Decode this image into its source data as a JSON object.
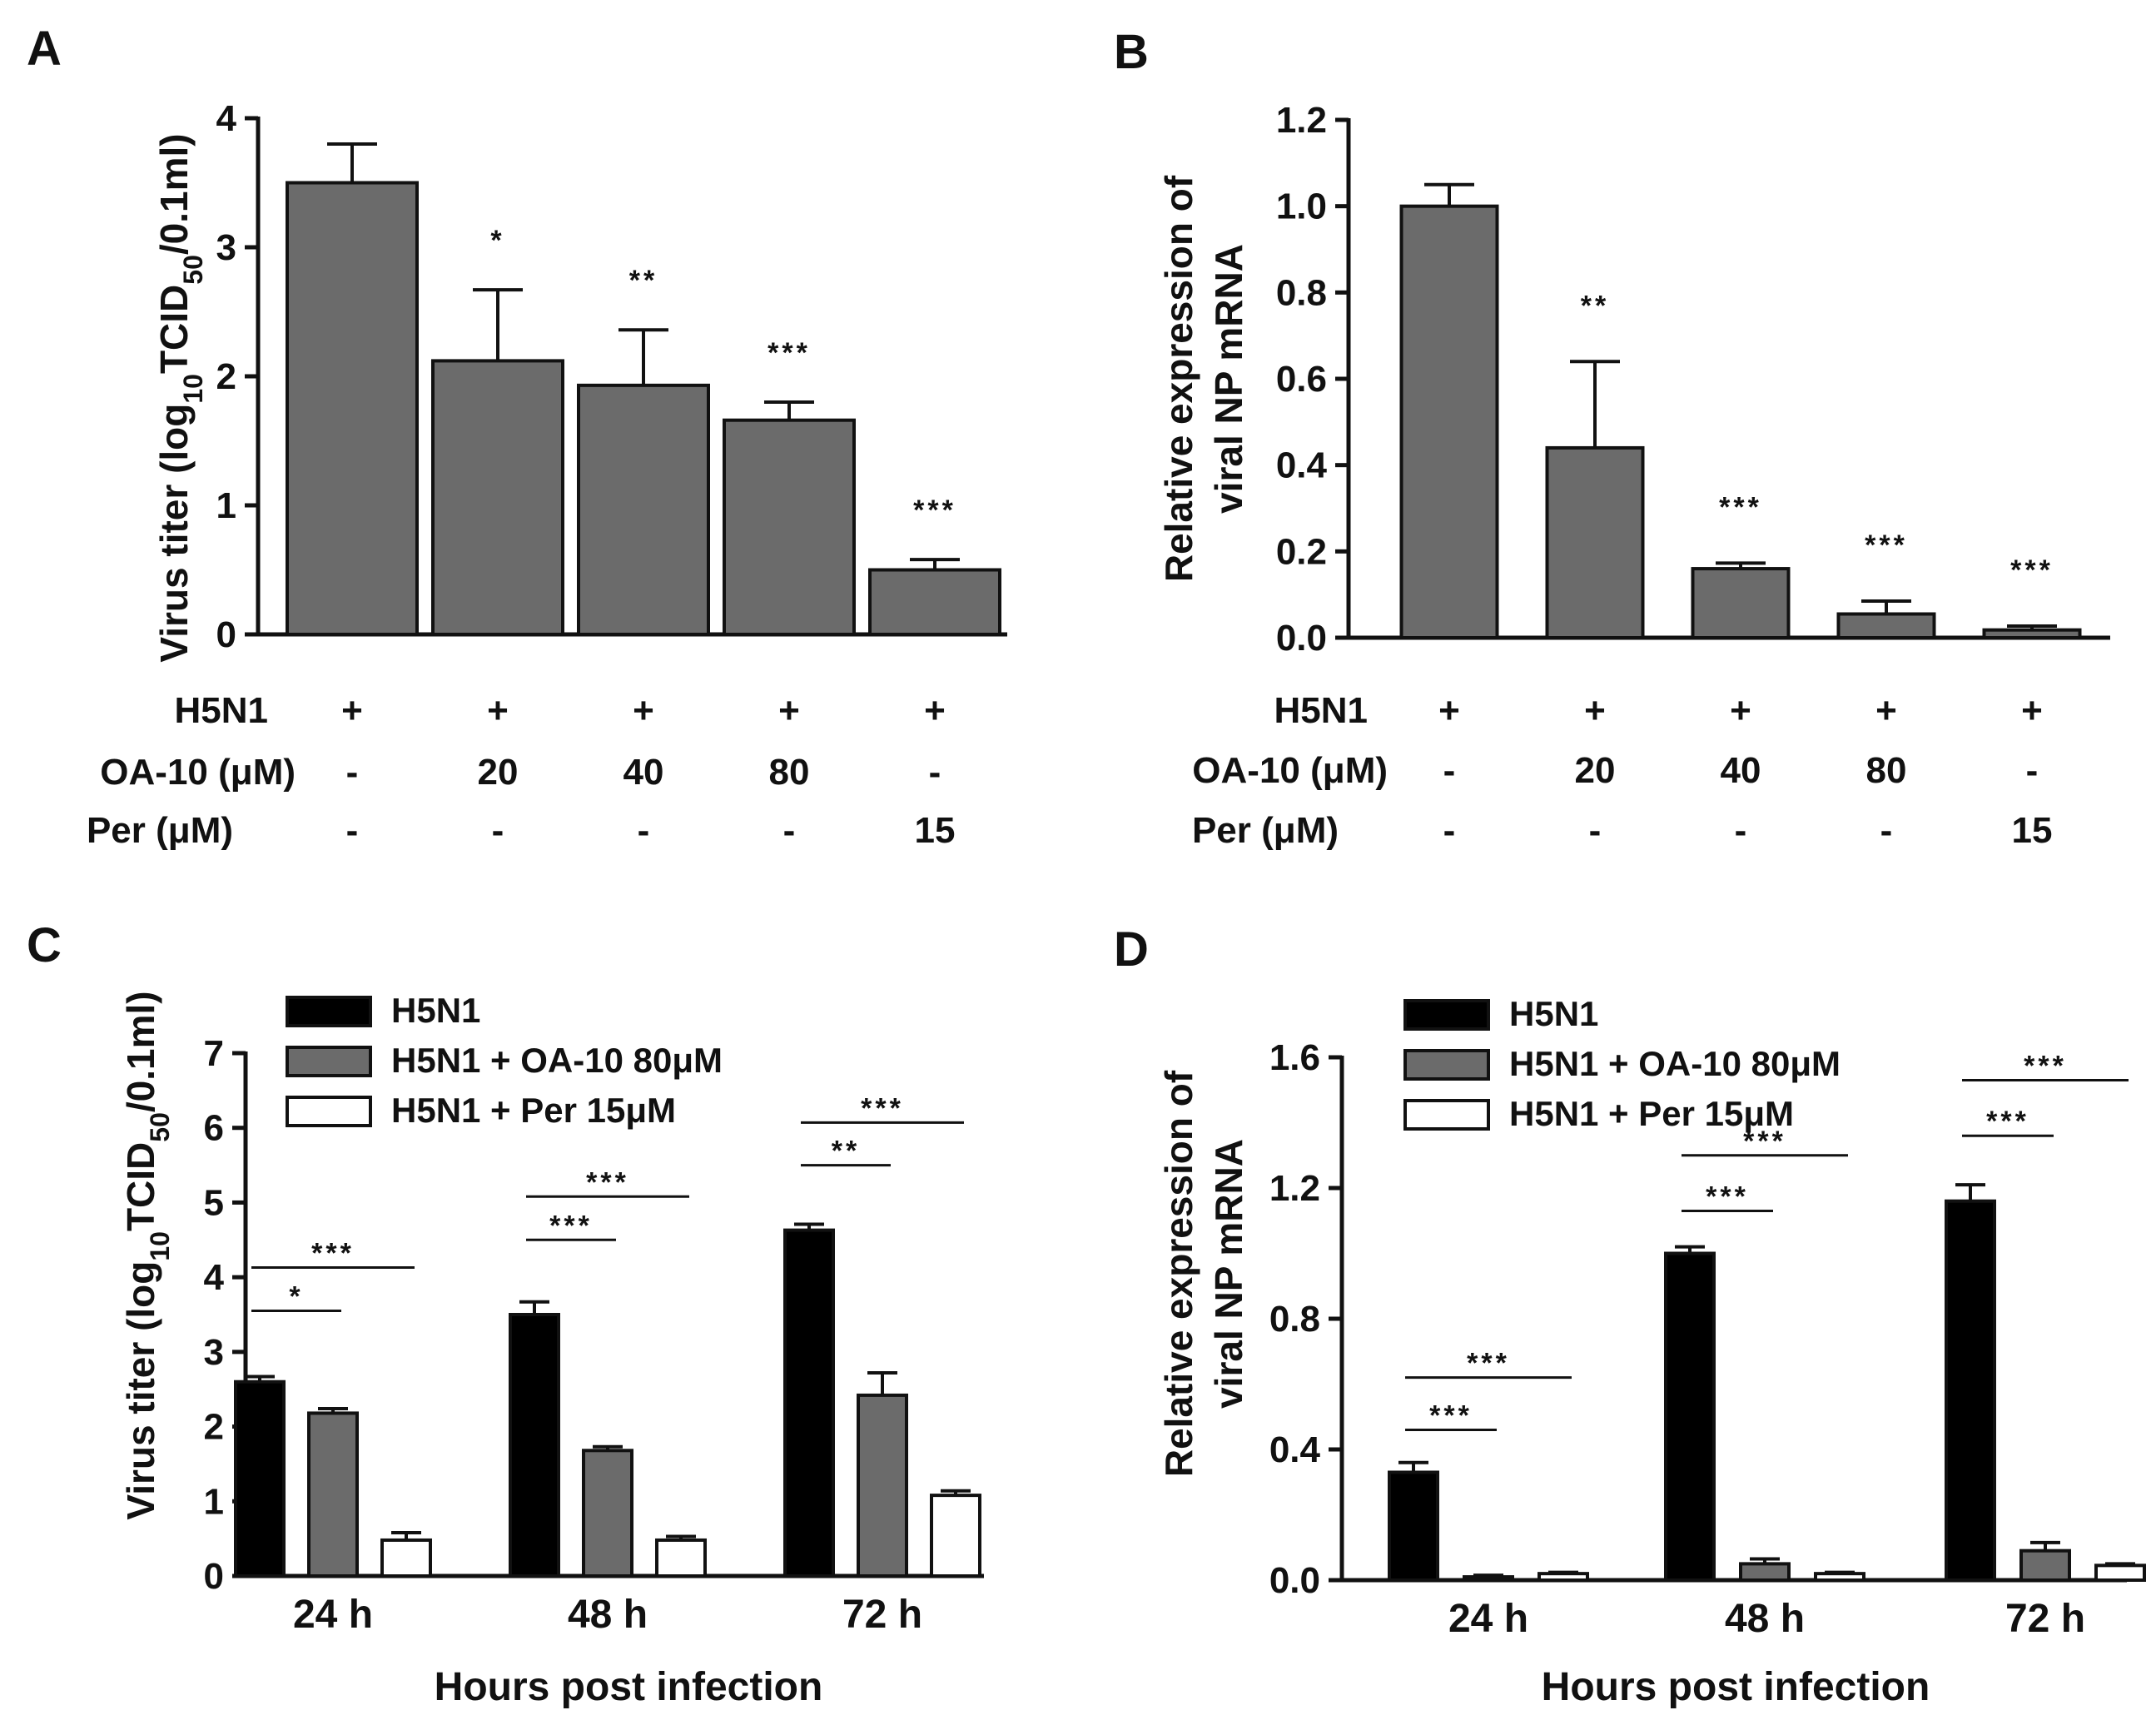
{
  "colors": {
    "black": "#000000",
    "gray": "#6b6b6b",
    "white": "#ffffff"
  },
  "chart_data": [
    {
      "panel": "A",
      "type": "bar",
      "ylabel": "Virus titer (log10TCID50/0.1ml)",
      "ylabel_parts": {
        "pre": "Virus titer (log",
        "sub1": "10",
        "mid": "TCID",
        "sub2": "50",
        "post": "/0.1ml)"
      },
      "ylim": [
        0,
        4
      ],
      "yticks": [
        "0",
        "1",
        "2",
        "3",
        "4"
      ],
      "values": [
        3.5,
        2.12,
        1.93,
        1.66,
        0.5
      ],
      "errors": [
        0.3,
        0.55,
        0.43,
        0.14,
        0.08
      ],
      "significance": [
        "",
        "*",
        "**",
        "***",
        "***"
      ],
      "treatment_rows": [
        {
          "label": "H5N1",
          "values": [
            "+",
            "+",
            "+",
            "+",
            "+"
          ]
        },
        {
          "label": "OA-10 (μM)",
          "values": [
            "-",
            "20",
            "40",
            "80",
            "-"
          ]
        },
        {
          "label": "Per (μM)",
          "values": [
            "-",
            "-",
            "-",
            "-",
            "15"
          ]
        }
      ]
    },
    {
      "panel": "B",
      "type": "bar",
      "ylabel_lines": [
        "Relative expression of",
        "viral NP mRNA"
      ],
      "ylim": [
        0,
        1.2
      ],
      "yticks": [
        "0.0",
        "0.2",
        "0.4",
        "0.6",
        "0.8",
        "1.0",
        "1.2"
      ],
      "values": [
        1.0,
        0.44,
        0.16,
        0.055,
        0.018
      ],
      "errors": [
        0.05,
        0.2,
        0.013,
        0.03,
        0.009
      ],
      "significance": [
        "",
        "**",
        "***",
        "***",
        "***"
      ],
      "treatment_rows": [
        {
          "label": "H5N1",
          "values": [
            "+",
            "+",
            "+",
            "+",
            "+"
          ]
        },
        {
          "label": "OA-10 (μM)",
          "values": [
            "-",
            "20",
            "40",
            "80",
            "-"
          ]
        },
        {
          "label": "Per (μM)",
          "values": [
            "-",
            "-",
            "-",
            "-",
            "15"
          ]
        }
      ]
    },
    {
      "panel": "C",
      "type": "bar",
      "ylabel": "Virus titer (log10TCID50/0.1ml)",
      "ylabel_parts": {
        "pre": "Virus titer (log",
        "sub1": "10",
        "mid": "TCID",
        "sub2": "50",
        "post": "/0.1ml)"
      },
      "xlabel": "Hours post infection",
      "categories": [
        "24 h",
        "48 h",
        "72 h"
      ],
      "ylim": [
        0,
        7
      ],
      "yticks": [
        "0",
        "1",
        "2",
        "3",
        "4",
        "5",
        "6",
        "7"
      ],
      "series": [
        {
          "name": "H5N1",
          "color": "#000000",
          "values": [
            2.6,
            3.5,
            4.63
          ],
          "errors": [
            0.07,
            0.17,
            0.08
          ]
        },
        {
          "name": "H5N1 + OA-10 80μM",
          "color": "#6b6b6b",
          "values": [
            2.18,
            1.68,
            2.42
          ],
          "errors": [
            0.06,
            0.05,
            0.3
          ]
        },
        {
          "name": "H5N1 + Per 15μM",
          "color": "#ffffff",
          "values": [
            0.48,
            0.48,
            1.08
          ],
          "errors": [
            0.1,
            0.05,
            0.06
          ]
        }
      ],
      "brackets": [
        {
          "group": 0,
          "to_series": 1,
          "label": "*",
          "y": 3.55
        },
        {
          "group": 0,
          "to_series": 2,
          "label": "***",
          "y": 4.13
        },
        {
          "group": 1,
          "to_series": 1,
          "label": "***",
          "y": 4.5
        },
        {
          "group": 1,
          "to_series": 2,
          "label": "***",
          "y": 5.08
        },
        {
          "group": 2,
          "to_series": 1,
          "label": "**",
          "y": 5.5
        },
        {
          "group": 2,
          "to_series": 2,
          "label": "***",
          "y": 6.07
        }
      ]
    },
    {
      "panel": "D",
      "type": "bar",
      "ylabel_lines": [
        "Relative expression of",
        "viral NP mRNA"
      ],
      "xlabel": "Hours post infection",
      "categories": [
        "24 h",
        "48 h",
        "72 h"
      ],
      "ylim": [
        0,
        1.6
      ],
      "yticks": [
        "0.0",
        "0.4",
        "0.8",
        "1.2",
        "1.6"
      ],
      "series": [
        {
          "name": "H5N1",
          "color": "#000000",
          "values": [
            0.33,
            1.0,
            1.16
          ],
          "errors": [
            0.03,
            0.02,
            0.05
          ]
        },
        {
          "name": "H5N1 + OA-10 80μM",
          "color": "#6b6b6b",
          "values": [
            0.01,
            0.05,
            0.09
          ],
          "errors": [
            0.005,
            0.015,
            0.025
          ]
        },
        {
          "name": "H5N1 + Per 15μM",
          "color": "#ffffff",
          "values": [
            0.02,
            0.02,
            0.045
          ],
          "errors": [
            0.004,
            0.004,
            0.005
          ]
        }
      ],
      "brackets": [
        {
          "group": 0,
          "to_series": 1,
          "label": "***",
          "y": 0.46
        },
        {
          "group": 0,
          "to_series": 2,
          "label": "***",
          "y": 0.62
        },
        {
          "group": 1,
          "to_series": 1,
          "label": "***",
          "y": 1.13
        },
        {
          "group": 1,
          "to_series": 2,
          "label": "***",
          "y": 1.3
        },
        {
          "group": 2,
          "to_series": 1,
          "label": "***",
          "y": 1.36
        },
        {
          "group": 2,
          "to_series": 2,
          "label": "***",
          "y": 1.53
        }
      ]
    }
  ]
}
